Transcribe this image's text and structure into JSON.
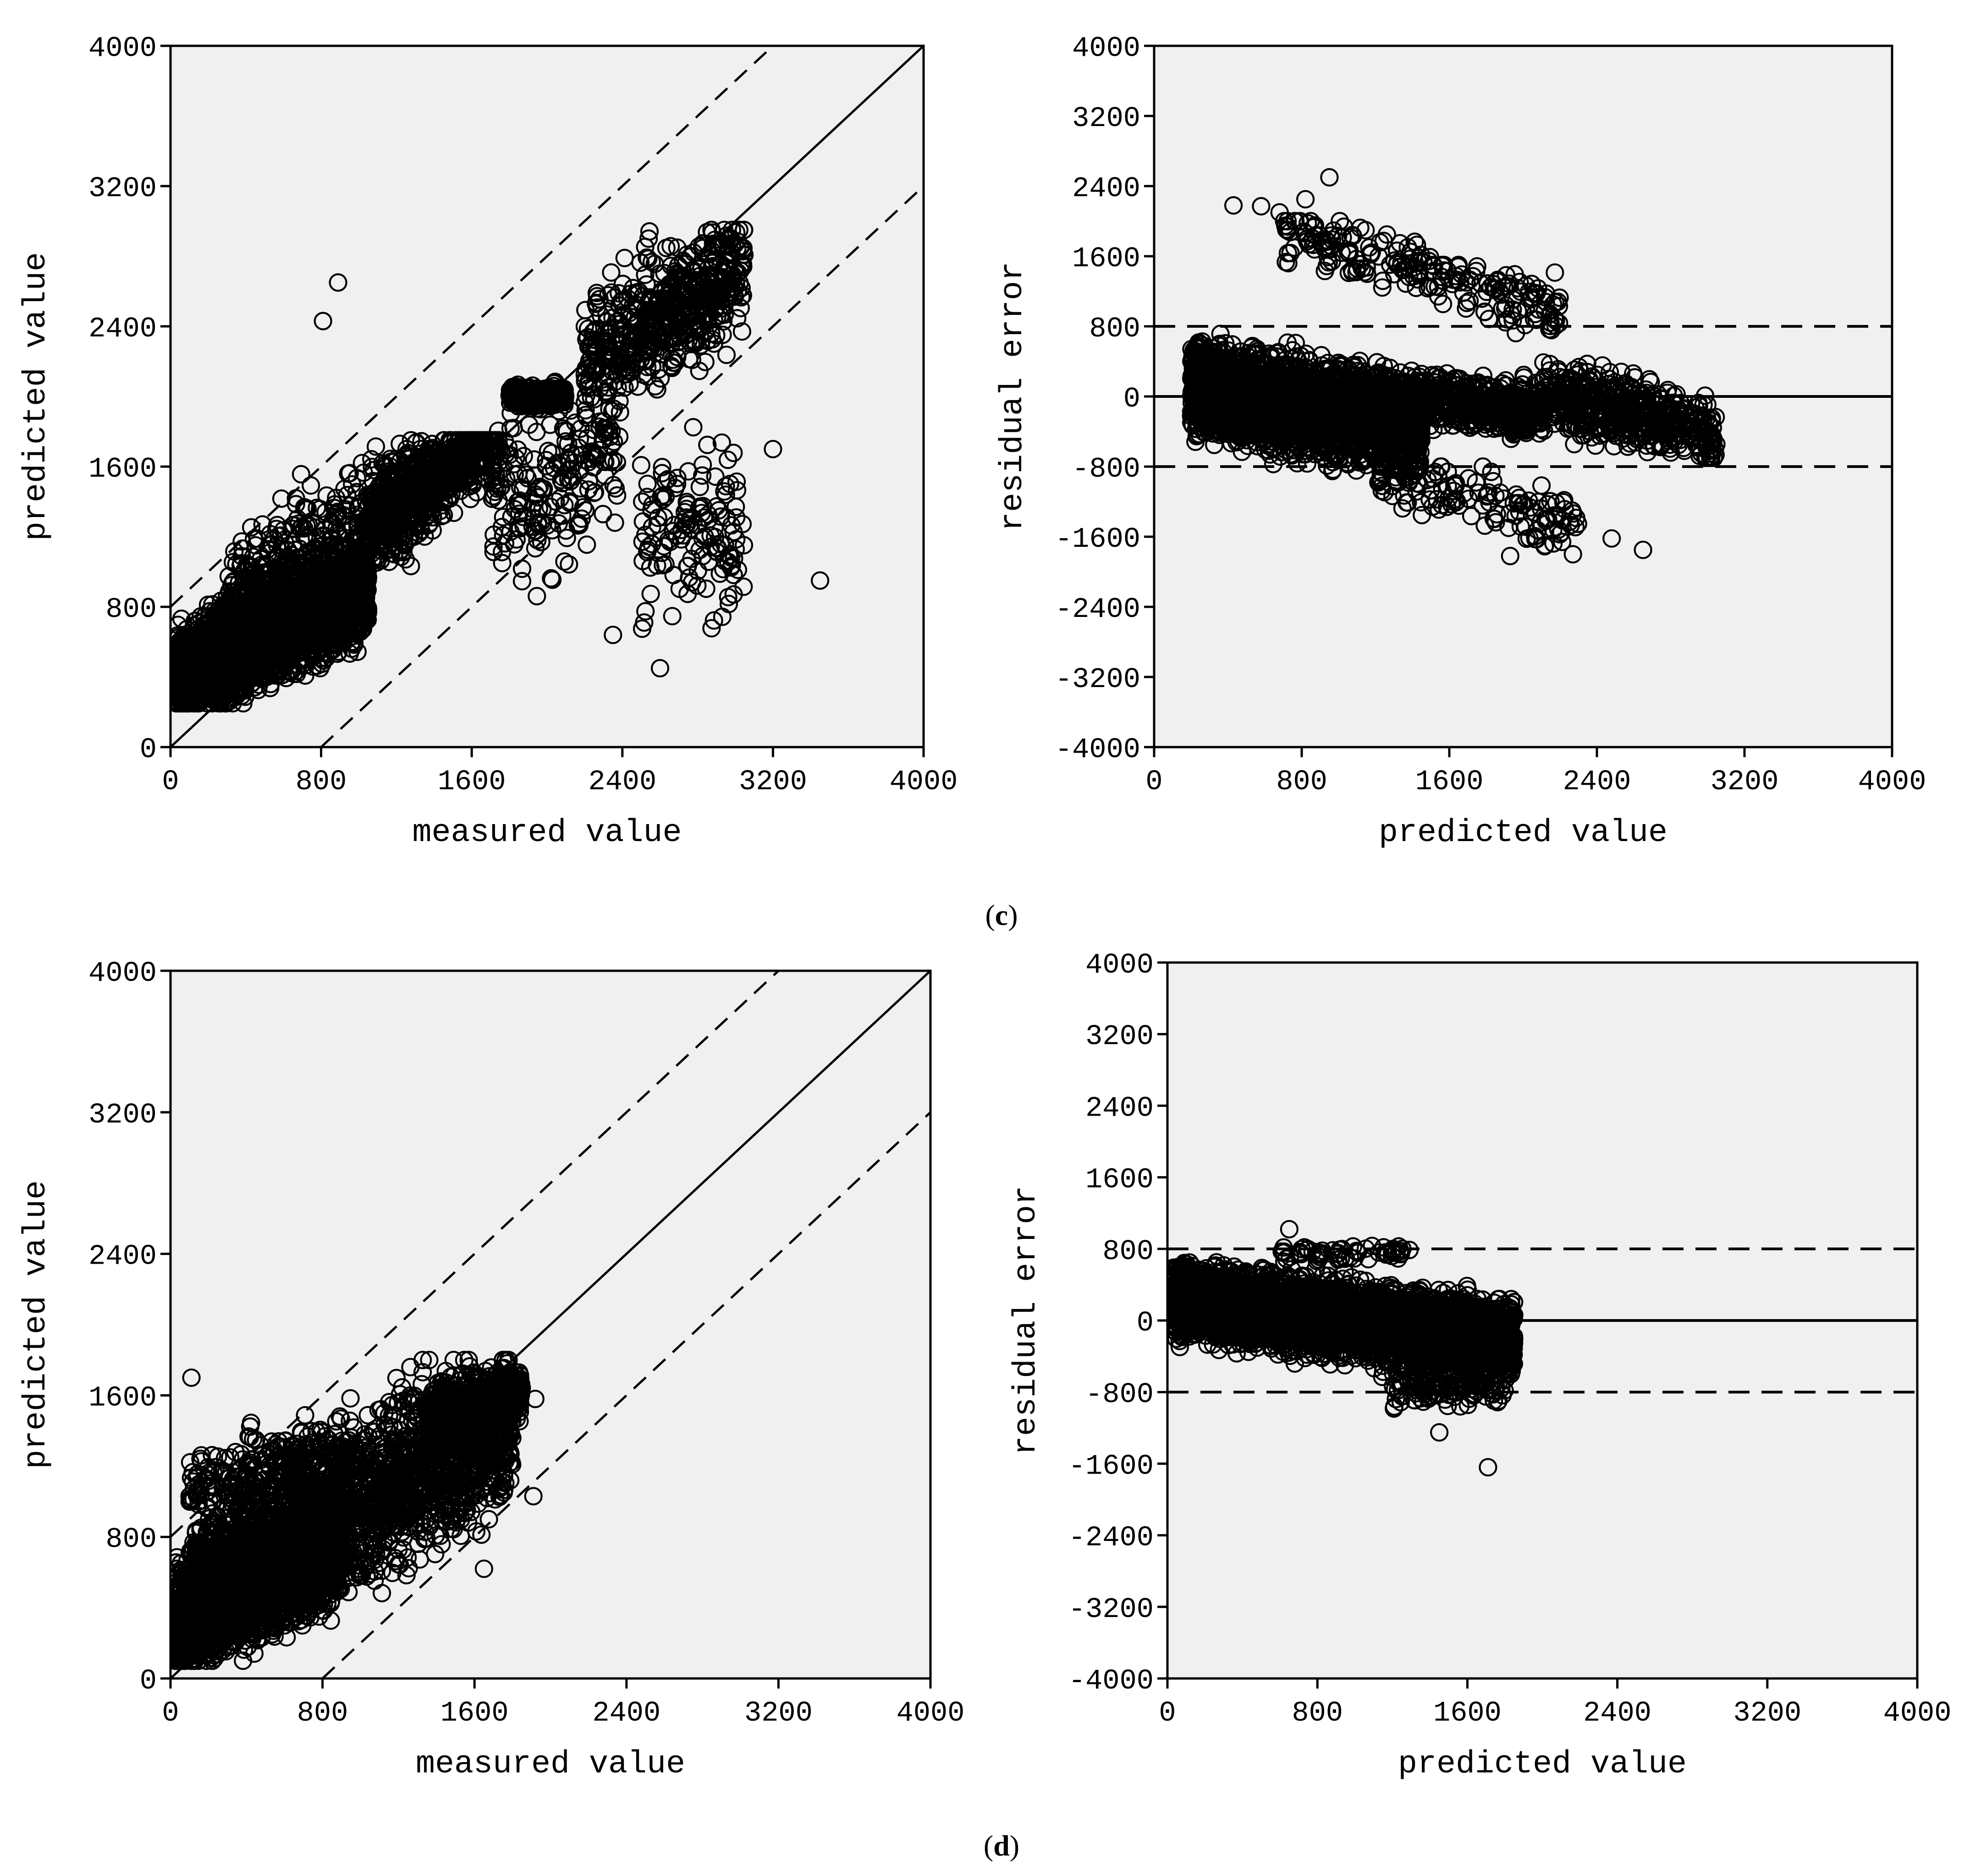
{
  "figure": {
    "panel_c_label": {
      "open": "(",
      "letter": "c",
      "close": ")"
    },
    "panel_d_label": {
      "open": "(",
      "letter": "d",
      "close": ")"
    }
  },
  "colors": {
    "plot_bg": "#f0f0f0",
    "ink": "#000000",
    "page_bg": "#ffffff"
  },
  "chart_data": [
    {
      "id": "c-left",
      "type": "scatter",
      "panel": "c",
      "xlabel": "measured value",
      "ylabel": "predicted value",
      "xlim": [
        0,
        4000
      ],
      "ylim": [
        0,
        4000
      ],
      "xticks": [
        0,
        800,
        1600,
        2400,
        3200,
        4000
      ],
      "yticks": [
        0,
        800,
        1600,
        2400,
        3200,
        4000
      ],
      "reference_lines": [
        {
          "style": "solid",
          "label": "y = x",
          "points": [
            [
              0,
              0
            ],
            [
              4000,
              4000
            ]
          ]
        },
        {
          "style": "dashed",
          "label": "y = x + 800",
          "points": [
            [
              0,
              800
            ],
            [
              3200,
              4000
            ]
          ]
        },
        {
          "style": "dashed",
          "label": "y = x - 800",
          "points": [
            [
              800,
              0
            ],
            [
              4000,
              3200
            ]
          ]
        }
      ],
      "clusters": [
        {
          "x": [
            30,
            1050
          ],
          "y": [
            250,
            1150
          ],
          "n": 2600,
          "trend": 0.5,
          "offset": 380
        },
        {
          "x": [
            300,
            1400
          ],
          "y": [
            600,
            1700
          ],
          "n": 500,
          "trend": 0.55,
          "offset": 700
        },
        {
          "x": [
            1050,
            1750
          ],
          "y": [
            900,
            1750
          ],
          "n": 500,
          "trend": 0.6,
          "offset": 700
        },
        {
          "x": [
            1800,
            2100
          ],
          "y": [
            1900,
            2100
          ],
          "n": 250,
          "trend": 0,
          "offset": 2000
        },
        {
          "x": [
            1700,
            2400
          ],
          "y": [
            600,
            2300
          ],
          "n": 200,
          "trend": 0.4,
          "offset": 700
        },
        {
          "x": [
            2200,
            3050
          ],
          "y": [
            1700,
            2950
          ],
          "n": 550,
          "trend": 0.6,
          "offset": 900
        },
        {
          "x": [
            2500,
            3050
          ],
          "y": [
            400,
            2000
          ],
          "n": 140,
          "trend": 0,
          "offset": 1200
        }
      ],
      "points": [
        [
          3450,
          950
        ],
        [
          3200,
          1700
        ],
        [
          890,
          2650
        ],
        [
          810,
          2430
        ],
        [
          2350,
          640
        ],
        [
          2600,
          450
        ]
      ]
    },
    {
      "id": "c-right",
      "type": "scatter",
      "panel": "c",
      "xlabel": "predicted value",
      "ylabel": "residual error",
      "xlim": [
        0,
        4000
      ],
      "ylim": [
        -4000,
        4000
      ],
      "xticks": [
        0,
        800,
        1600,
        2400,
        3200,
        4000
      ],
      "yticks": [
        -4000,
        -3200,
        -2400,
        -1600,
        -800,
        0,
        800,
        1600,
        2400,
        3200,
        4000
      ],
      "reference_lines": [
        {
          "style": "solid",
          "label": "residual = 0",
          "points": [
            [
              0,
              0
            ],
            [
              4000,
              0
            ]
          ]
        },
        {
          "style": "dashed",
          "label": "residual = +800",
          "points": [
            [
              0,
              800
            ],
            [
              4000,
              800
            ]
          ]
        },
        {
          "style": "dashed",
          "label": "residual = -800",
          "points": [
            [
              0,
              -800
            ],
            [
              4000,
              -800
            ]
          ]
        }
      ],
      "clusters": [
        {
          "x": [
            200,
            1450
          ],
          "y": [
            -850,
            900
          ],
          "n": 3000,
          "trend": -0.3,
          "offset": 150
        },
        {
          "x": [
            1400,
            2100
          ],
          "y": [
            -500,
            500
          ],
          "n": 500,
          "trend": -0.2,
          "offset": 250
        },
        {
          "x": [
            2100,
            3050
          ],
          "y": [
            -700,
            600
          ],
          "n": 500,
          "trend": -0.5,
          "offset": 1100
        },
        {
          "x": [
            700,
            1500
          ],
          "y": [
            900,
            2000
          ],
          "n": 120,
          "trend": -0.6,
          "offset": 2300
        },
        {
          "x": [
            1500,
            2200
          ],
          "y": [
            500,
            1500
          ],
          "n": 100,
          "trend": -0.6,
          "offset": 2300
        },
        {
          "x": [
            1200,
            2300
          ],
          "y": [
            -1900,
            -800
          ],
          "n": 150,
          "trend": -0.5,
          "offset": -300
        }
      ],
      "points": [
        [
          950,
          2500
        ],
        [
          430,
          2180
        ],
        [
          580,
          2170
        ],
        [
          680,
          2100
        ],
        [
          820,
          2250
        ],
        [
          2650,
          -1750
        ],
        [
          1930,
          -1820
        ],
        [
          2270,
          -1800
        ],
        [
          2480,
          -1620
        ]
      ]
    },
    {
      "id": "d-left",
      "type": "scatter",
      "panel": "d",
      "xlabel": "measured value",
      "ylabel": "predicted value",
      "xlim": [
        0,
        4000
      ],
      "ylim": [
        0,
        4000
      ],
      "xticks": [
        0,
        800,
        1600,
        2400,
        3200,
        4000
      ],
      "yticks": [
        0,
        800,
        1600,
        2400,
        3200,
        4000
      ],
      "reference_lines": [
        {
          "style": "solid",
          "label": "y = x",
          "points": [
            [
              0,
              0
            ],
            [
              4000,
              4000
            ]
          ]
        },
        {
          "style": "dashed",
          "label": "y = x + 800",
          "points": [
            [
              0,
              800
            ],
            [
              3200,
              4000
            ]
          ]
        },
        {
          "style": "dashed",
          "label": "y = x - 800",
          "points": [
            [
              800,
              0
            ],
            [
              4000,
              3200
            ]
          ]
        }
      ],
      "clusters": [
        {
          "x": [
            20,
            900
          ],
          "y": [
            100,
            1100
          ],
          "n": 2600,
          "trend": 0.55,
          "offset": 300
        },
        {
          "x": [
            100,
            1800
          ],
          "y": [
            300,
            1800
          ],
          "n": 2400,
          "trend": 0.55,
          "offset": 450
        },
        {
          "x": [
            1350,
            1850
          ],
          "y": [
            1200,
            1800
          ],
          "n": 600,
          "trend": 0.3,
          "offset": 1050
        },
        {
          "x": [
            100,
            900
          ],
          "y": [
            1000,
            1650
          ],
          "n": 200,
          "trend": 0.3,
          "offset": 1050
        }
      ],
      "points": [
        [
          110,
          1700
        ],
        [
          1650,
          620
        ],
        [
          1920,
          1580
        ],
        [
          1910,
          1030
        ]
      ]
    },
    {
      "id": "d-right",
      "type": "scatter",
      "panel": "d",
      "xlabel": "predicted value",
      "ylabel": "residual error",
      "xlim": [
        0,
        4000
      ],
      "ylim": [
        -4000,
        4000
      ],
      "xticks": [
        0,
        800,
        1600,
        2400,
        3200,
        4000
      ],
      "yticks": [
        -4000,
        -3200,
        -2400,
        -1600,
        -800,
        0,
        800,
        1600,
        2400,
        3200,
        4000
      ],
      "reference_lines": [
        {
          "style": "solid",
          "label": "residual = 0",
          "points": [
            [
              1850,
              0
            ],
            [
              4000,
              0
            ]
          ]
        },
        {
          "style": "dashed",
          "label": "residual = +800",
          "points": [
            [
              0,
              800
            ],
            [
              4000,
              800
            ]
          ]
        },
        {
          "style": "dashed",
          "label": "residual = -800",
          "points": [
            [
              0,
              -800
            ],
            [
              4000,
              -800
            ]
          ]
        }
      ],
      "clusters": [
        {
          "x": [
            30,
            1850
          ],
          "y": [
            -700,
            650
          ],
          "n": 4200,
          "trend": -0.25,
          "offset": 250
        },
        {
          "x": [
            1200,
            1800
          ],
          "y": [
            -1150,
            -300
          ],
          "n": 150,
          "trend": 0,
          "offset": -700
        },
        {
          "x": [
            600,
            1300
          ],
          "y": [
            600,
            900
          ],
          "n": 60,
          "trend": 0,
          "offset": 750
        }
      ],
      "points": [
        [
          650,
          1020
        ],
        [
          1710,
          -1640
        ],
        [
          1450,
          -1250
        ]
      ]
    }
  ]
}
